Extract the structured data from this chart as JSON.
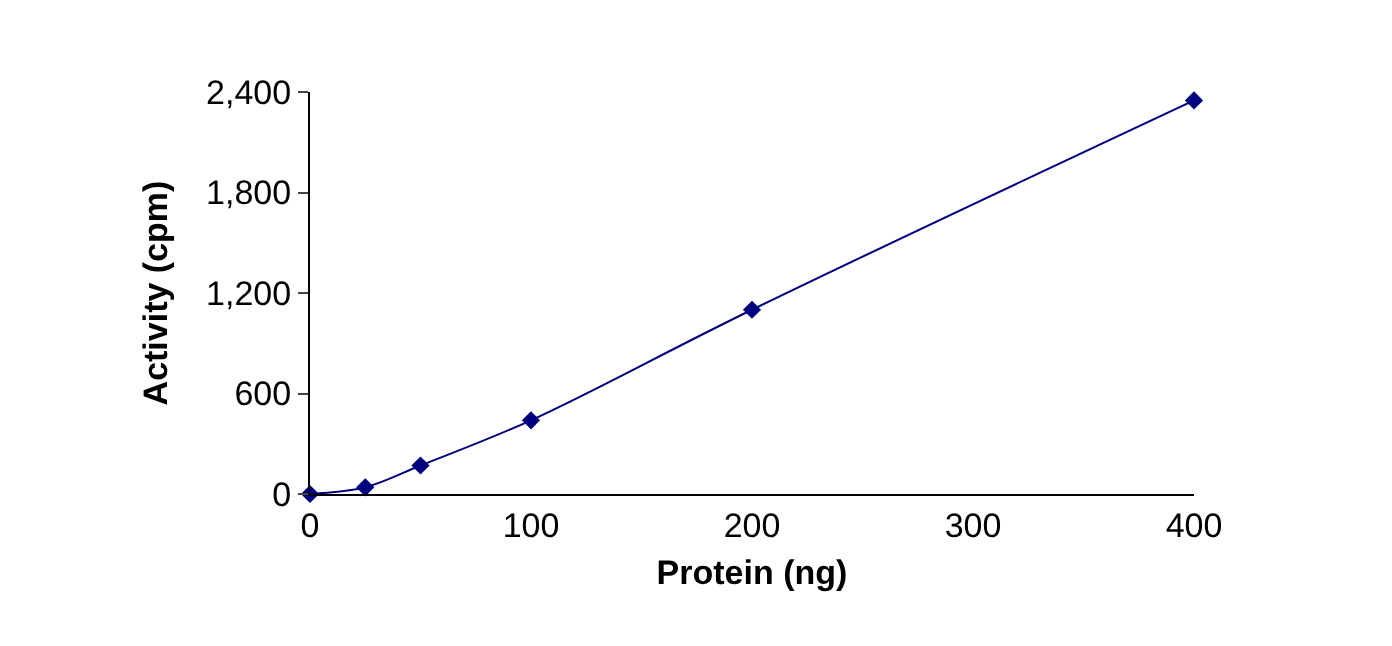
{
  "chart_data": {
    "type": "line",
    "xlabel": "Protein (ng)",
    "ylabel": "Activity (cpm)",
    "x": [
      0,
      25,
      50,
      100,
      200,
      400
    ],
    "series": [
      {
        "color": "#00007f",
        "values": [
          0,
          40,
          170,
          440,
          1100,
          2350
        ]
      }
    ],
    "xlim": [
      0,
      400
    ],
    "xticks": [
      0,
      100,
      200,
      300,
      400
    ],
    "ylim": [
      0,
      2400
    ],
    "yticks": [
      {
        "value": 0,
        "label": "0"
      },
      {
        "value": 600,
        "label": "600"
      },
      {
        "value": 1200,
        "label": "1,200"
      },
      {
        "value": 1800,
        "label": "1,800"
      },
      {
        "value": 2400,
        "label": "2,400"
      }
    ],
    "marker": "diamond",
    "line_style": "solid"
  }
}
